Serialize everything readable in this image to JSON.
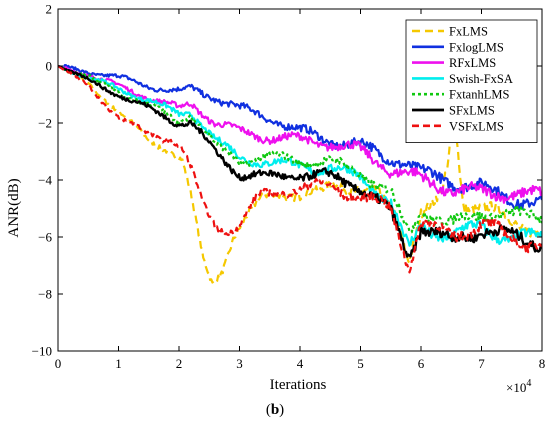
{
  "caption": {
    "open": "(",
    "letter": "b",
    "close": ")"
  },
  "chart_data": {
    "type": "line",
    "xlabel": "Iterations",
    "ylabel": "ANR(dB)",
    "x_multiplier_label": "×10",
    "x_multiplier_exp": "4",
    "xlim": [
      0,
      8
    ],
    "ylim": [
      -10,
      2
    ],
    "xticks": [
      0,
      1,
      2,
      3,
      4,
      5,
      6,
      7,
      8
    ],
    "yticks": [
      2,
      0,
      -2,
      -4,
      -6,
      -8,
      -10
    ],
    "grid": false,
    "legend_position": "top-right",
    "series": [
      {
        "name": "FxLMS",
        "color": "#f5c800",
        "dash": "8,5",
        "width": 2.2,
        "points": [
          [
            0,
            0
          ],
          [
            0.5,
            -0.6
          ],
          [
            1,
            -1.6
          ],
          [
            1.5,
            -2.6
          ],
          [
            1.8,
            -2.9
          ],
          [
            2.05,
            -3.3
          ],
          [
            2.2,
            -4.6
          ],
          [
            2.4,
            -6.8
          ],
          [
            2.55,
            -7.6
          ],
          [
            2.7,
            -7.2
          ],
          [
            2.9,
            -6.0
          ],
          [
            3.1,
            -5.4
          ],
          [
            3.4,
            -4.6
          ],
          [
            3.7,
            -4.4
          ],
          [
            4.0,
            -4.6
          ],
          [
            4.3,
            -4.5
          ],
          [
            4.6,
            -4.0
          ],
          [
            5.0,
            -4.4
          ],
          [
            5.3,
            -4.6
          ],
          [
            5.6,
            -5.2
          ],
          [
            5.8,
            -6.7
          ],
          [
            6.0,
            -5.2
          ],
          [
            6.2,
            -5.0
          ],
          [
            6.35,
            -4.5
          ],
          [
            6.45,
            -3.5
          ],
          [
            6.5,
            -2.2
          ],
          [
            6.55,
            -1.4
          ],
          [
            6.6,
            -2.6
          ],
          [
            6.7,
            -4.8
          ],
          [
            7.0,
            -5.0
          ],
          [
            7.5,
            -5.4
          ],
          [
            8.0,
            -5.8
          ]
        ]
      },
      {
        "name": "FxlogLMS",
        "color": "#1030e0",
        "dash": "",
        "width": 2.2,
        "points": [
          [
            0,
            0
          ],
          [
            0.5,
            -0.2
          ],
          [
            1,
            -0.4
          ],
          [
            1.5,
            -0.7
          ],
          [
            2,
            -0.9
          ],
          [
            2.2,
            -0.8
          ],
          [
            2.6,
            -1.1
          ],
          [
            3,
            -1.5
          ],
          [
            3.5,
            -1.8
          ],
          [
            4,
            -2.3
          ],
          [
            4.5,
            -2.6
          ],
          [
            5,
            -2.8
          ],
          [
            5.3,
            -3.1
          ],
          [
            5.7,
            -3.3
          ],
          [
            6,
            -3.8
          ],
          [
            6.5,
            -4.0
          ],
          [
            7,
            -4.3
          ],
          [
            7.5,
            -4.6
          ],
          [
            8,
            -4.9
          ]
        ]
      },
      {
        "name": "RFxLMS",
        "color": "#ee10ee",
        "dash": "",
        "width": 2.2,
        "points": [
          [
            0,
            0
          ],
          [
            0.5,
            -0.3
          ],
          [
            1,
            -0.7
          ],
          [
            1.5,
            -1.1
          ],
          [
            2,
            -1.5
          ],
          [
            2.2,
            -1.3
          ],
          [
            2.6,
            -2.0
          ],
          [
            3,
            -2.3
          ],
          [
            3.5,
            -2.5
          ],
          [
            4,
            -2.6
          ],
          [
            4.5,
            -2.7
          ],
          [
            5,
            -3.0
          ],
          [
            5.5,
            -3.6
          ],
          [
            6,
            -4.0
          ],
          [
            6.5,
            -4.3
          ],
          [
            7,
            -4.5
          ],
          [
            7.5,
            -4.4
          ],
          [
            8,
            -4.6
          ]
        ]
      },
      {
        "name": "Swish-FxSA",
        "color": "#00eeee",
        "dash": "",
        "width": 2.2,
        "points": [
          [
            0,
            0
          ],
          [
            0.5,
            -0.4
          ],
          [
            1,
            -0.8
          ],
          [
            1.5,
            -1.2
          ],
          [
            2,
            -1.7
          ],
          [
            2.2,
            -1.6
          ],
          [
            2.6,
            -2.6
          ],
          [
            3,
            -3.2
          ],
          [
            3.5,
            -3.4
          ],
          [
            4,
            -3.5
          ],
          [
            4.5,
            -3.6
          ],
          [
            5,
            -3.9
          ],
          [
            5.5,
            -4.8
          ],
          [
            5.8,
            -6.5
          ],
          [
            6,
            -5.6
          ],
          [
            6.5,
            -6.0
          ],
          [
            7,
            -5.6
          ],
          [
            7.5,
            -6.1
          ],
          [
            8,
            -6.0
          ]
        ]
      },
      {
        "name": "FxtanhLMS",
        "color": "#10c810",
        "dash": "3,3",
        "width": 2.2,
        "points": [
          [
            0,
            0
          ],
          [
            0.5,
            -0.4
          ],
          [
            1,
            -0.9
          ],
          [
            1.5,
            -1.4
          ],
          [
            2,
            -1.9
          ],
          [
            2.2,
            -1.7
          ],
          [
            2.6,
            -2.8
          ],
          [
            3,
            -3.3
          ],
          [
            3.5,
            -3.2
          ],
          [
            4,
            -3.3
          ],
          [
            4.5,
            -3.4
          ],
          [
            5,
            -3.7
          ],
          [
            5.5,
            -4.5
          ],
          [
            5.8,
            -5.9
          ],
          [
            6,
            -5.0
          ],
          [
            6.5,
            -5.6
          ],
          [
            7,
            -5.1
          ],
          [
            7.5,
            -5.3
          ],
          [
            8,
            -5.2
          ]
        ]
      },
      {
        "name": "SFxLMS",
        "color": "#000000",
        "dash": "",
        "width": 2.4,
        "points": [
          [
            0,
            0
          ],
          [
            0.5,
            -0.5
          ],
          [
            1,
            -1.0
          ],
          [
            1.5,
            -1.5
          ],
          [
            2,
            -2.0
          ],
          [
            2.2,
            -2.0
          ],
          [
            2.6,
            -3.0
          ],
          [
            3,
            -3.8
          ],
          [
            3.5,
            -3.9
          ],
          [
            4,
            -3.8
          ],
          [
            4.5,
            -3.9
          ],
          [
            5,
            -4.2
          ],
          [
            5.5,
            -5.2
          ],
          [
            5.8,
            -6.7
          ],
          [
            6,
            -5.6
          ],
          [
            6.5,
            -6.2
          ],
          [
            7,
            -5.7
          ],
          [
            7.5,
            -6.0
          ],
          [
            8,
            -6.2
          ]
        ]
      },
      {
        "name": "VSFxLMS",
        "color": "#ee1010",
        "dash": "7,4",
        "width": 2.2,
        "points": [
          [
            0,
            0
          ],
          [
            0.5,
            -0.7
          ],
          [
            1,
            -1.8
          ],
          [
            1.5,
            -2.4
          ],
          [
            1.9,
            -2.6
          ],
          [
            2.05,
            -2.9
          ],
          [
            2.2,
            -3.6
          ],
          [
            2.4,
            -4.9
          ],
          [
            2.6,
            -5.6
          ],
          [
            2.8,
            -5.8
          ],
          [
            3,
            -5.6
          ],
          [
            3.3,
            -4.6
          ],
          [
            3.6,
            -4.4
          ],
          [
            4,
            -4.3
          ],
          [
            4.5,
            -4.2
          ],
          [
            5,
            -4.6
          ],
          [
            5.5,
            -5.0
          ],
          [
            5.8,
            -7.0
          ],
          [
            6,
            -5.5
          ],
          [
            6.5,
            -6.0
          ],
          [
            7,
            -5.5
          ],
          [
            7.5,
            -6.1
          ],
          [
            8,
            -6.2
          ]
        ]
      }
    ]
  }
}
